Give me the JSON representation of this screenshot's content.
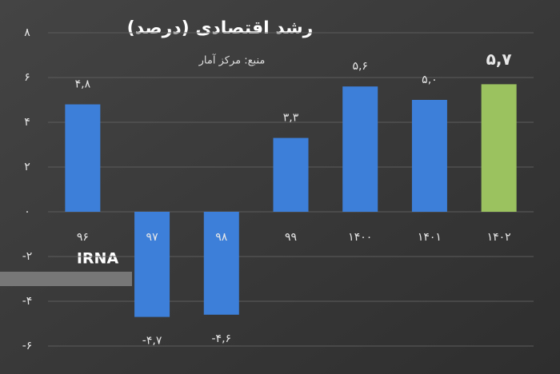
{
  "chart_data": {
    "type": "bar",
    "title": "رشد اقتصادی (درصد)",
    "subtitle": "منبع: مرکز آمار",
    "watermark": "IRNA",
    "categories": [
      "۹۶",
      "۹۷",
      "۹۸",
      "۹۹",
      "۱۴۰۰",
      "۱۴۰۱",
      "۱۴۰۲"
    ],
    "values": [
      4.8,
      -4.7,
      -4.6,
      3.3,
      5.6,
      5.0,
      5.7
    ],
    "value_labels": [
      "۴,۸",
      "-۴,۷",
      "-۴,۶",
      "۳,۳",
      "۵,۶",
      "۵,۰",
      "۵,۷"
    ],
    "colors": [
      "#3d7fd9",
      "#3d7fd9",
      "#3d7fd9",
      "#3d7fd9",
      "#3d7fd9",
      "#3d7fd9",
      "#9bc25f"
    ],
    "ylim": [
      -6,
      8
    ],
    "yticks": [
      {
        "value": -6,
        "label": "-۶"
      },
      {
        "value": -4,
        "label": "-۴"
      },
      {
        "value": -2,
        "label": "-۲"
      },
      {
        "value": 0,
        "label": "۰"
      },
      {
        "value": 2,
        "label": "۲"
      },
      {
        "value": 4,
        "label": "۴"
      },
      {
        "value": 6,
        "label": "۶"
      },
      {
        "value": 8,
        "label": "۸"
      }
    ],
    "grid": true
  }
}
